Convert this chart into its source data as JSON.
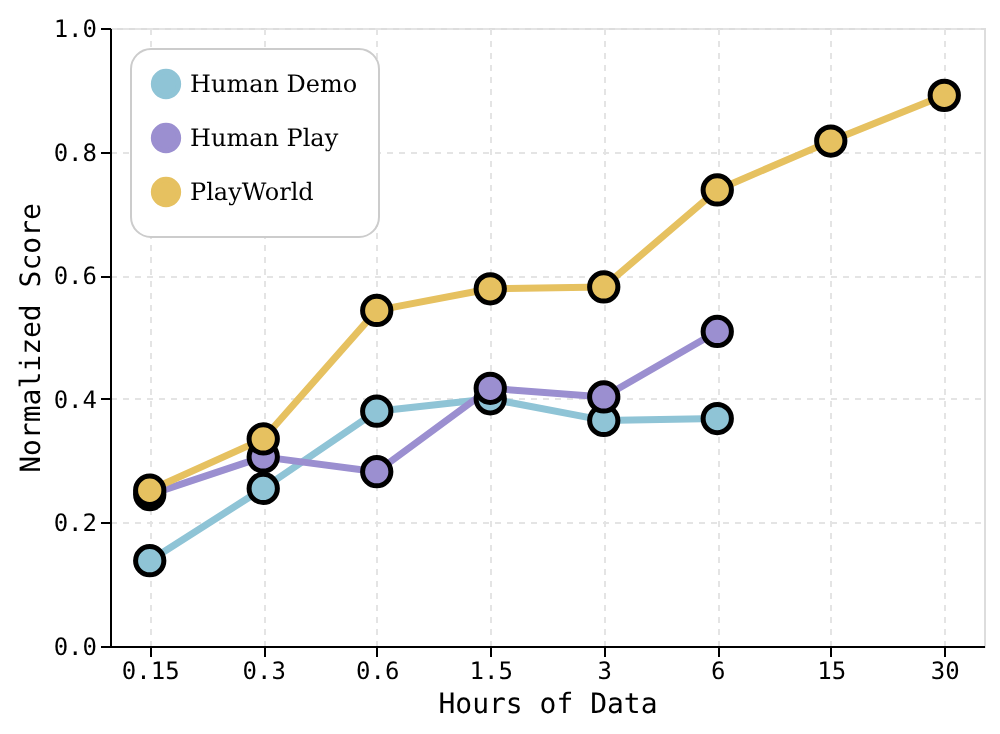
{
  "chart_data": {
    "type": "line",
    "xlabel": "Hours of Data",
    "ylabel": "Normalized Score",
    "categories": [
      "0.15",
      "0.3",
      "0.6",
      "1.5",
      "3",
      "6",
      "15",
      "30"
    ],
    "series": [
      {
        "name": "Human Demo",
        "color": "#8fc4d6",
        "values": [
          0.138,
          0.255,
          0.38,
          0.4,
          0.365,
          0.368,
          null,
          null
        ]
      },
      {
        "name": "Human Play",
        "color": "#9b8fd0",
        "values": [
          0.245,
          0.306,
          0.282,
          0.417,
          0.403,
          0.509,
          null,
          null
        ]
      },
      {
        "name": "PlayWorld",
        "color": "#e6c160",
        "values": [
          0.252,
          0.335,
          0.543,
          0.578,
          0.581,
          0.738,
          0.817,
          0.891
        ]
      }
    ],
    "ylim": [
      0,
      1.0
    ],
    "yticks": [
      {
        "value": 0,
        "label": "0.0"
      },
      {
        "value": 0.2,
        "label": "0.2"
      },
      {
        "value": 0.4,
        "label": "0.4"
      },
      {
        "value": 0.6,
        "label": "0.6"
      },
      {
        "value": 0.8,
        "label": "0.8"
      },
      {
        "value": 1.0,
        "label": "1.0"
      }
    ],
    "grid": true,
    "legend": "top left",
    "marker": "circle",
    "line_style": "solid"
  }
}
